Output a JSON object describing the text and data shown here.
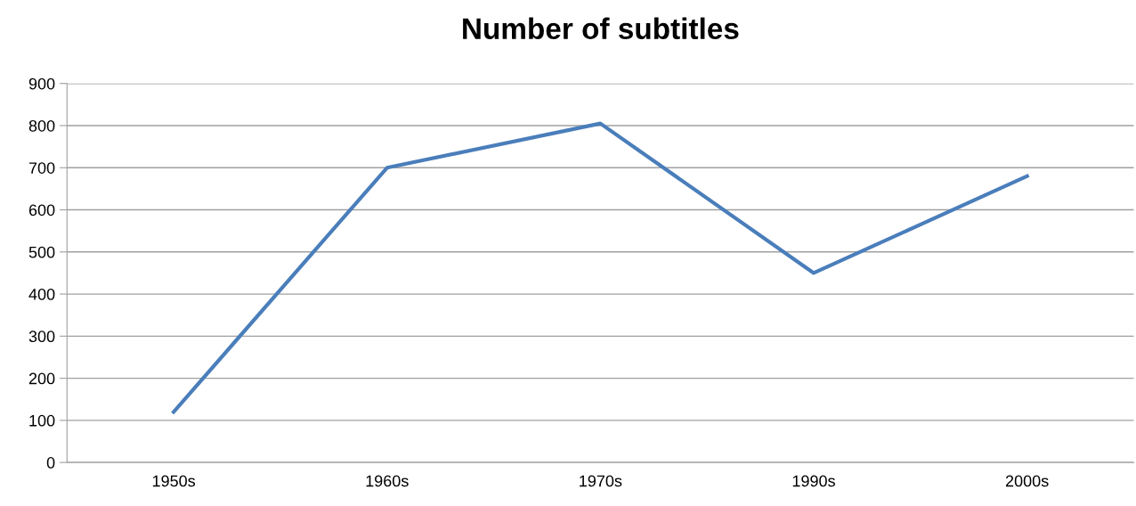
{
  "chart_data": {
    "type": "line",
    "title": "Number of subtitles",
    "categories": [
      "1950s",
      "1960s",
      "1970s",
      "1990s",
      "2000s"
    ],
    "series": [
      {
        "color": "#4a7ebb",
        "values": [
          120,
          700,
          805,
          450,
          680
        ]
      }
    ],
    "ylim": [
      0,
      900
    ],
    "yticks": [
      0,
      100,
      200,
      300,
      400,
      500,
      600,
      700,
      800,
      900
    ],
    "grid": "y",
    "legend": false,
    "marker": "none",
    "line_style": "solid"
  }
}
